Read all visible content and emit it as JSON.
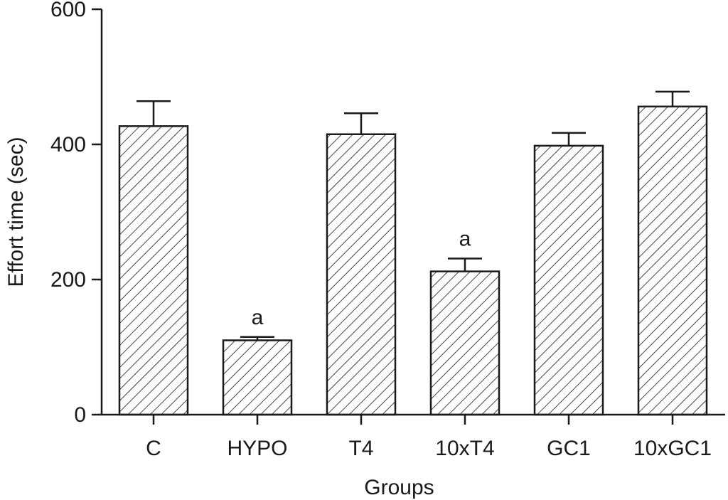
{
  "chart_data": {
    "type": "bar",
    "categories": [
      "C",
      "HYPO",
      "T4",
      "10xT4",
      "GC1",
      "10xGC1"
    ],
    "values": [
      427,
      110,
      415,
      212,
      398,
      456
    ],
    "errors": [
      37,
      5,
      31,
      19,
      19,
      22
    ],
    "annotations": [
      "",
      "a",
      "",
      "a",
      "",
      ""
    ],
    "xlabel": "Groups",
    "ylabel": "Effort time (sec)",
    "ylim": [
      0,
      600
    ],
    "yticks": [
      0,
      200,
      400,
      600
    ],
    "fill_pattern": "diagonal-hatch",
    "bar_color": "#ffffff",
    "line_color": "#1a1a1a",
    "grid": false,
    "legend": "none"
  }
}
